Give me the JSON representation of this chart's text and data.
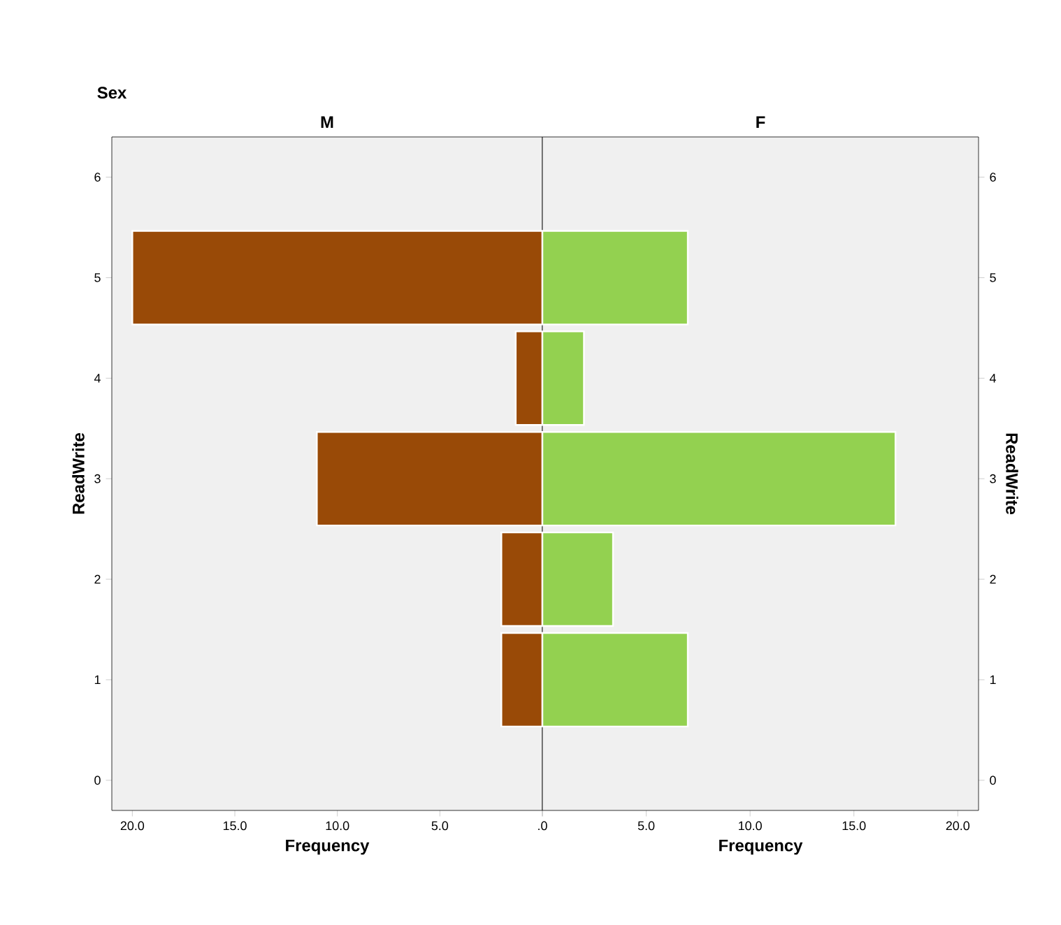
{
  "chart_data": [
    {
      "type": "bar",
      "orientation": "horizontal",
      "title": "M",
      "annotations": [
        "Sex"
      ],
      "xlabel": "Frequency",
      "ylabel": "ReadWrite",
      "x": [
        1,
        2,
        3,
        4,
        5
      ],
      "values": [
        2,
        2,
        11,
        1.3,
        20
      ],
      "color": "#994a07",
      "xlim": [
        21,
        0
      ],
      "xticks": [
        {
          "value": 20,
          "label": "20.0"
        },
        {
          "value": 15,
          "label": "15.0"
        },
        {
          "value": 10,
          "label": "10.0"
        },
        {
          "value": 5,
          "label": "5.0"
        },
        {
          "value": 0,
          "label": ".0"
        }
      ],
      "ylim": [
        -0.3,
        6.4
      ],
      "yticks": [
        0,
        1,
        2,
        3,
        4,
        5,
        6
      ]
    },
    {
      "type": "bar",
      "orientation": "horizontal",
      "title": "F",
      "xlabel": "Frequency",
      "ylabel": "ReadWrite",
      "x": [
        1,
        2,
        3,
        4,
        5
      ],
      "values": [
        7,
        3.4,
        17,
        2,
        7
      ],
      "color": "#93d150",
      "xlim": [
        0,
        21
      ],
      "xticks": [
        {
          "value": 0,
          "label": null
        },
        {
          "value": 5,
          "label": "5.0"
        },
        {
          "value": 10,
          "label": "10.0"
        },
        {
          "value": 15,
          "label": "15.0"
        },
        {
          "value": 20,
          "label": "20.0"
        }
      ],
      "ylim": [
        -0.3,
        6.4
      ],
      "yticks": [
        0,
        1,
        2,
        3,
        4,
        5,
        6
      ]
    }
  ]
}
